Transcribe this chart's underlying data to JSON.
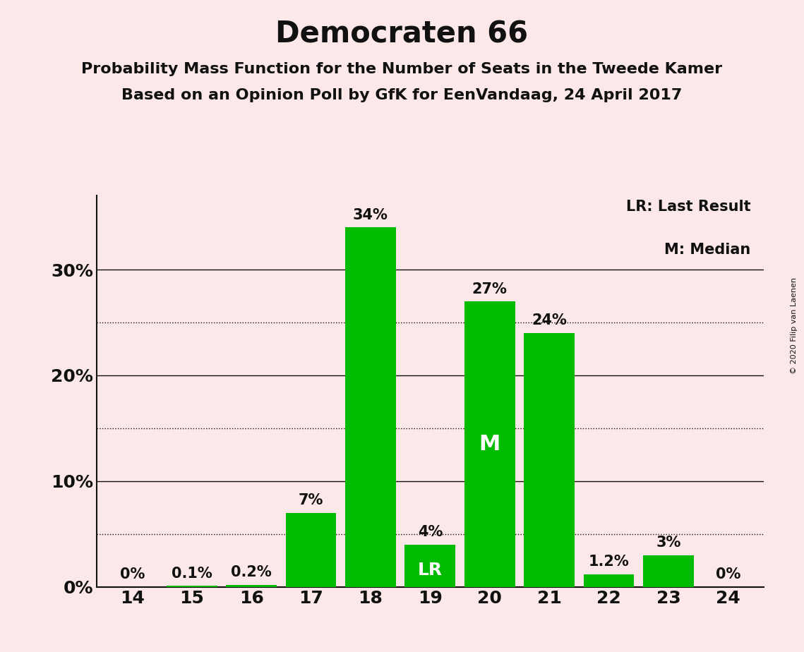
{
  "title": "Democraten 66",
  "subtitle1": "Probability Mass Function for the Number of Seats in the Tweede Kamer",
  "subtitle2": "Based on an Opinion Poll by GfK for EenVandaag, 24 April 2017",
  "copyright": "© 2020 Filip van Laenen",
  "seats": [
    14,
    15,
    16,
    17,
    18,
    19,
    20,
    21,
    22,
    23,
    24
  ],
  "values": [
    0.0,
    0.1,
    0.2,
    7.0,
    34.0,
    4.0,
    27.0,
    24.0,
    1.2,
    3.0,
    0.0
  ],
  "labels": [
    "0%",
    "0.1%",
    "0.2%",
    "7%",
    "34%",
    "4%",
    "27%",
    "24%",
    "1.2%",
    "3%",
    "0%"
  ],
  "bar_color": "#00bb00",
  "background_color": "#fce8e8",
  "lr_seat": 19,
  "median_seat": 20,
  "yticks_solid": [
    0,
    10,
    20,
    30
  ],
  "yticks_dotted": [
    5,
    15,
    25
  ],
  "ylim": [
    0,
    37
  ],
  "title_fontsize": 30,
  "subtitle_fontsize": 16,
  "label_fontsize": 15,
  "axis_fontsize": 18
}
